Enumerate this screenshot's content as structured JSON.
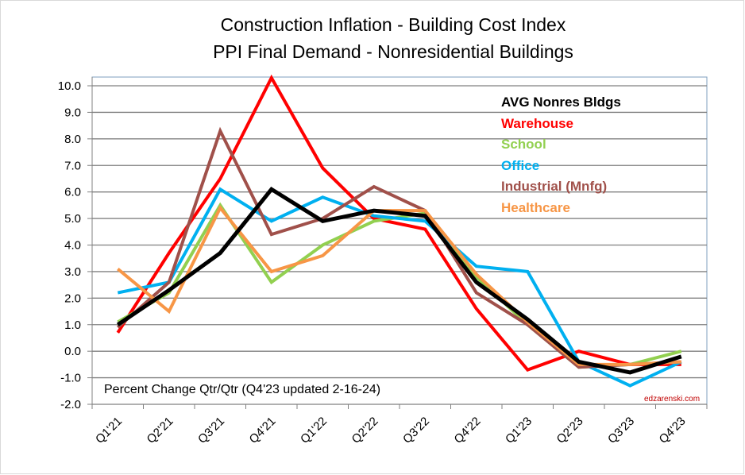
{
  "chart_data": {
    "type": "line",
    "title": "Construction Inflation - Building Cost Index",
    "subtitle": "PPI Final Demand - Nonresidential Buildings",
    "annotation": "Percent Change Qtr/Qtr  (Q4'23 updated 2-16-24)",
    "credit": "edzarenski.com",
    "categories": [
      "Q1'21",
      "Q2'21",
      "Q3'21",
      "Q4'21",
      "Q1'22",
      "Q2'22",
      "Q3'22",
      "Q4'22",
      "Q1'23",
      "Q2'23",
      "Q3'23",
      "Q4'23"
    ],
    "ylim": [
      -2.0,
      10.0
    ],
    "yticks": [
      "10.0",
      "9.0",
      "8.0",
      "7.0",
      "6.0",
      "5.0",
      "4.0",
      "3.0",
      "2.0",
      "1.0",
      "0.0",
      "-1.0",
      "-2.0"
    ],
    "grid": true,
    "legend_position": "top-right",
    "series": [
      {
        "name": "Warehouse",
        "color": "#ff0000",
        "values": [
          0.7,
          3.7,
          6.5,
          10.3,
          6.9,
          5.0,
          4.6,
          1.6,
          -0.7,
          0.0,
          -0.5,
          -0.5
        ]
      },
      {
        "name": "School",
        "color": "#92d050",
        "values": [
          1.1,
          2.2,
          5.5,
          2.6,
          4.0,
          4.9,
          5.2,
          2.8,
          1.0,
          -0.6,
          -0.5,
          0.0
        ]
      },
      {
        "name": "Office",
        "color": "#00b0f0",
        "values": [
          2.2,
          2.6,
          6.1,
          4.9,
          5.8,
          5.1,
          4.9,
          3.2,
          3.0,
          -0.4,
          -1.3,
          -0.4
        ]
      },
      {
        "name": "Industrial (Mnfg)",
        "color": "#a0504a",
        "values": [
          0.9,
          2.6,
          8.3,
          4.4,
          5.0,
          6.2,
          5.3,
          2.2,
          1.0,
          -0.6,
          -0.5,
          -0.4
        ]
      },
      {
        "name": "Healthcare",
        "color": "#f79646",
        "values": [
          3.1,
          1.5,
          5.4,
          3.0,
          3.6,
          5.3,
          5.3,
          2.9,
          1.1,
          -0.5,
          -0.5,
          -0.4
        ]
      },
      {
        "name": "AVG Nonres Bldgs",
        "color": "#000000",
        "values": [
          1.0,
          2.3,
          3.7,
          6.1,
          4.9,
          5.3,
          5.1,
          2.6,
          1.2,
          -0.4,
          -0.8,
          -0.2
        ]
      }
    ],
    "legend_order": [
      "AVG Nonres Bldgs",
      "Warehouse",
      "School",
      "Office",
      "Industrial (Mnfg)",
      "Healthcare"
    ]
  }
}
